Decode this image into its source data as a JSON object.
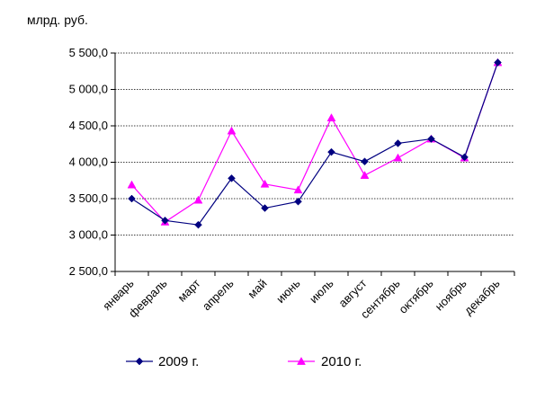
{
  "chart_data": {
    "type": "line",
    "ylabel": "млрд. руб.",
    "ylim": [
      2500,
      5500
    ],
    "yticks": [
      2500,
      3000,
      3500,
      4000,
      4500,
      5000,
      5500
    ],
    "ytick_labels": [
      "2 500,0",
      "3 000,0",
      "3 500,0",
      "4 000,0",
      "4 500,0",
      "5 000,0",
      "5 500,0"
    ],
    "categories": [
      "январь",
      "февраль",
      "март",
      "апрель",
      "май",
      "июнь",
      "июль",
      "август",
      "сентябрь",
      "октябрь",
      "ноябрь",
      "декабрь"
    ],
    "grid": "horizontal dashed",
    "legend": "bottom",
    "series": [
      {
        "name": "2009 г.",
        "color": "#000080",
        "marker": "diamond",
        "values": [
          3500,
          3200,
          3140,
          3780,
          3370,
          3460,
          4140,
          4010,
          4260,
          4320,
          4070,
          5370
        ]
      },
      {
        "name": "2010 г.",
        "color": "#ff00ff",
        "marker": "triangle",
        "values": [
          3690,
          3180,
          3480,
          4430,
          3700,
          3620,
          4610,
          3820,
          4060,
          4320,
          4060,
          5370
        ]
      }
    ]
  }
}
